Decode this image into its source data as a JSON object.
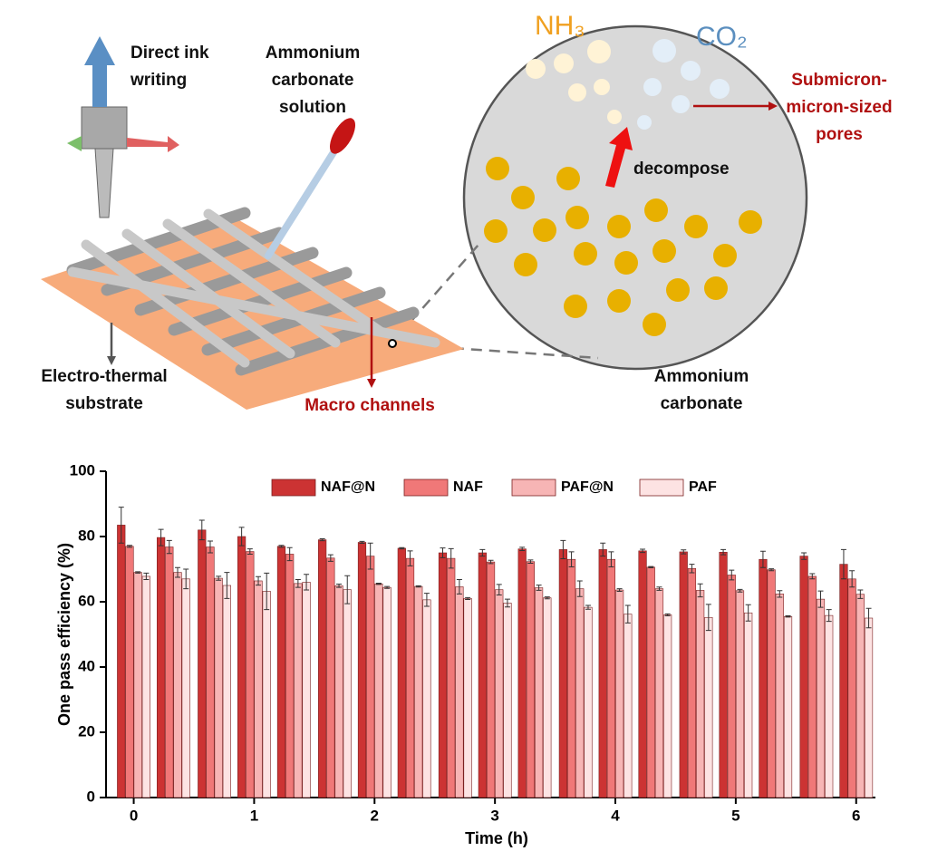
{
  "illustration": {
    "direct_ink": [
      "Direct ink",
      "writing"
    ],
    "solution": [
      "Ammonium",
      "carbonate",
      "solution"
    ],
    "nh3": "NH₃",
    "co2": "CO₂",
    "pores": [
      "Submicron-",
      "micron-sized",
      "pores"
    ],
    "decompose": "decompose",
    "substrate": [
      "Electro-thermal",
      "substrate"
    ],
    "channels": "Macro channels",
    "carbonate": [
      "Ammonium",
      "carbonate"
    ]
  },
  "chart_data": {
    "type": "bar",
    "xlabel": "Time (h)",
    "ylabel": "One pass efficiency (%)",
    "x": [
      0,
      0.33,
      0.67,
      1,
      1.33,
      1.67,
      2,
      2.33,
      2.67,
      3,
      3.33,
      3.67,
      4,
      4.33,
      4.67,
      5,
      5.33,
      5.67,
      6
    ],
    "series": [
      {
        "name": "NAF@N",
        "color": "#cc3333",
        "values": [
          83.5,
          79.7,
          82,
          80,
          77,
          79,
          78.2,
          76.4,
          75,
          75,
          76.2,
          76,
          76,
          75.6,
          75.3,
          75.2,
          73,
          74,
          71.5
        ],
        "errors": [
          5.5,
          2.5,
          3,
          2.8,
          0.3,
          0.3,
          0.3,
          0.2,
          1.5,
          1,
          0.5,
          2.8,
          2,
          0.5,
          0.6,
          0.8,
          2.5,
          1,
          4.5
        ]
      },
      {
        "name": "NAF",
        "color": "#f07878",
        "values": [
          77,
          76.8,
          76.8,
          75.4,
          74.6,
          73.4,
          74,
          73.3,
          73.3,
          72.2,
          72.3,
          73,
          73,
          70.6,
          70.2,
          68.2,
          69.8,
          67.8,
          67
        ],
        "errors": [
          0.3,
          2,
          1.8,
          0.8,
          2,
          1,
          4,
          2.3,
          3,
          0.5,
          0.5,
          2.3,
          2.3,
          0.2,
          1.3,
          1.5,
          0.3,
          0.8,
          2.5
        ]
      },
      {
        "name": "PAF@N",
        "color": "#f7b5b5",
        "values": [
          69,
          69,
          67.2,
          66.4,
          65.6,
          64.9,
          65.5,
          64.7,
          64.6,
          63.7,
          64.3,
          64,
          63.6,
          64,
          63.5,
          63.4,
          62.4,
          60.8,
          62.3
        ],
        "errors": [
          0.2,
          1.5,
          0.6,
          1.3,
          1.2,
          0.5,
          0.2,
          0.2,
          2.2,
          1.6,
          0.8,
          2.4,
          0.4,
          0.5,
          2,
          0.4,
          1,
          2.5,
          1.3
        ]
      },
      {
        "name": "PAF",
        "color": "#fde3e3",
        "values": [
          67.8,
          67,
          65,
          63.2,
          66,
          63.7,
          64.4,
          60.6,
          61,
          59.6,
          61.2,
          58.3,
          56.2,
          56,
          55.2,
          56.6,
          55.5,
          55.8,
          55
        ],
        "errors": [
          1,
          3,
          4,
          5.6,
          2.4,
          4.3,
          0.3,
          2,
          0.3,
          1.2,
          0.3,
          0.6,
          2.7,
          0.3,
          4,
          2.5,
          0.2,
          1.8,
          3
        ]
      }
    ],
    "xlim": [
      -0.23,
      6.16
    ],
    "xticks": [
      0,
      1,
      2,
      3,
      4,
      5,
      6
    ],
    "ylim": [
      0,
      100
    ],
    "yticks": [
      0,
      20,
      40,
      60,
      80,
      100
    ],
    "legend": "top"
  }
}
